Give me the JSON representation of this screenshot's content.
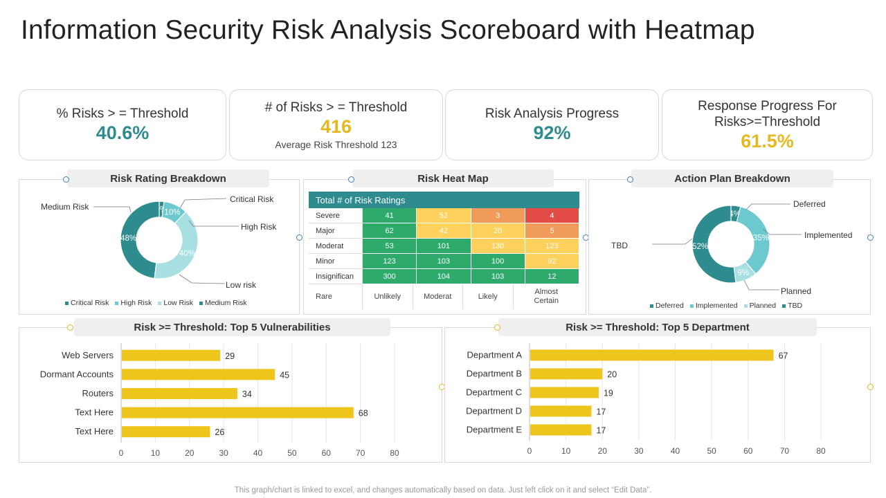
{
  "title": "Information Security Risk Analysis Scoreboard with Heatmap",
  "kpis": {
    "risks_pct": {
      "label": "% Risks > = Threshold",
      "value": "40.6%"
    },
    "risks_count": {
      "label": "# of  Risks > = Threshold",
      "value": "416",
      "sub": "Average  Risk Threshold 123"
    },
    "analysis_progress": {
      "label": "Risk Analysis Progress",
      "value": "92%"
    },
    "response_progress": {
      "label": "Response Progress For Risks>=Threshold",
      "value": "61.5%"
    }
  },
  "colors": {
    "teal_dark": "#2e8b8e",
    "teal_mid": "#6cc9cf",
    "teal_light": "#a8dfe2",
    "yellow": "#eec51c",
    "green": "#2eaa6b",
    "amber": "#fdd15b",
    "orange": "#f19b5b",
    "red": "#e24b46"
  },
  "chart_data": [
    {
      "type": "pie",
      "title": "Risk Rating Breakdown",
      "slices": [
        {
          "name": "Critical Risk",
          "value": 2,
          "label": "2%",
          "callout": "Critical Risk",
          "color": "#2e8b8e"
        },
        {
          "name": "High Risk",
          "value": 10,
          "label": "10%",
          "callout": "High Risk",
          "color": "#6cc9cf"
        },
        {
          "name": "Low Risk",
          "value": 40,
          "label": "40%",
          "callout": "Low risk",
          "color": "#a8dfe2"
        },
        {
          "name": "Medium Risk",
          "value": 48,
          "label": "48%",
          "callout": "Medium Risk",
          "color": "#2e8b8e"
        }
      ],
      "legend": [
        "Critical Risk",
        "High Risk",
        "Low Risk",
        "Medium Risk"
      ]
    },
    {
      "type": "heatmap",
      "title": "Risk Heat Map",
      "header": "Total # of Risk Ratings",
      "rows": [
        "Severe",
        "Major",
        "Moderat",
        "Minor",
        "Insignifican"
      ],
      "columns_label": "Rare",
      "columns": [
        "Unlikely",
        "Moderat",
        "Likely",
        "Almost Certain"
      ],
      "values": [
        [
          41,
          52,
          3,
          4
        ],
        [
          62,
          42,
          20,
          5
        ],
        [
          53,
          101,
          130,
          123
        ],
        [
          123,
          103,
          100,
          92
        ],
        [
          300,
          104,
          103,
          12
        ]
      ],
      "cell_levels": [
        [
          "green",
          "amber",
          "orange",
          "red"
        ],
        [
          "green",
          "amber",
          "amber",
          "orange"
        ],
        [
          "green",
          "green",
          "amber",
          "amber"
        ],
        [
          "green",
          "green",
          "green",
          "amber"
        ],
        [
          "green",
          "green",
          "green",
          "green"
        ]
      ]
    },
    {
      "type": "pie",
      "title": "Action Plan Breakdown",
      "slices": [
        {
          "name": "Deferred",
          "value": 4,
          "label": "4%",
          "callout": "Deferred",
          "color": "#2e8b8e"
        },
        {
          "name": "Implemented",
          "value": 35,
          "label": "35%",
          "callout": "Implemented",
          "color": "#6cc9cf"
        },
        {
          "name": "Planned",
          "value": 9,
          "label": "9%",
          "callout": "Planned",
          "color": "#a8dfe2"
        },
        {
          "name": "TBD",
          "value": 52,
          "label": "52%",
          "callout": "TBD",
          "color": "#2e8b8e"
        }
      ],
      "legend": [
        "Deferred",
        "Implemented",
        "Planned",
        "TBD"
      ]
    },
    {
      "type": "bar",
      "orientation": "horizontal",
      "title": "Risk >= Threshold: Top 5 Vulnerabilities",
      "categories": [
        "Web Servers",
        "Dormant Accounts",
        "Routers",
        "Text Here",
        "Text Here"
      ],
      "values": [
        29,
        45,
        34,
        68,
        26
      ],
      "xlim": [
        0,
        80
      ],
      "ticks": [
        0,
        10,
        20,
        30,
        40,
        50,
        60,
        70,
        80
      ]
    },
    {
      "type": "bar",
      "orientation": "horizontal",
      "title": "Risk >= Threshold: Top 5 Department",
      "categories": [
        "Department A",
        "Department B",
        "Department C",
        "Department D",
        "Department E"
      ],
      "values": [
        67,
        20,
        19,
        17,
        17
      ],
      "xlim": [
        0,
        80
      ],
      "ticks": [
        0,
        10,
        20,
        30,
        40,
        50,
        60,
        70,
        80
      ]
    }
  ],
  "footnote": "This graph/chart is linked to excel,  and changes automatically based on data. Just left click on it and select “Edit Data”."
}
